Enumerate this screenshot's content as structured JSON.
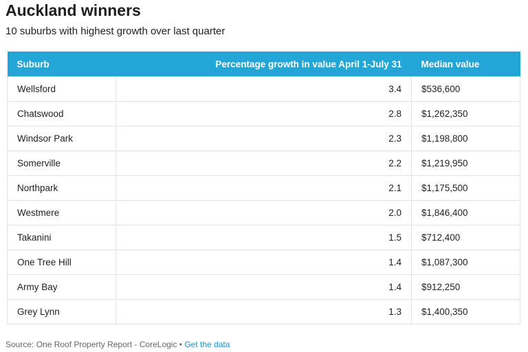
{
  "title": "Auckland winners",
  "subtitle": "10 suburbs with highest growth over last quarter",
  "header_color": "#22a6d6",
  "link_color": "#1b8fcf",
  "chart_data": {
    "type": "table",
    "title": "Auckland winners",
    "subtitle": "10 suburbs with highest growth over last quarter",
    "columns": [
      "Suburb",
      "Percentage growth in value April 1-July 31",
      "Median value"
    ],
    "rows": [
      [
        "Wellsford",
        "3.4",
        "$536,600"
      ],
      [
        "Chatswood",
        "2.8",
        "$1,262,350"
      ],
      [
        "Windsor Park",
        "2.3",
        "$1,198,800"
      ],
      [
        "Somerville",
        "2.2",
        "$1,219,950"
      ],
      [
        "Northpark",
        "2.1",
        "$1,175,500"
      ],
      [
        "Westmere",
        "2.0",
        "$1,846,400"
      ],
      [
        "Takanini",
        "1.5",
        "$712,400"
      ],
      [
        "One Tree Hill",
        "1.4",
        "$1,087,300"
      ],
      [
        "Army Bay",
        "1.4",
        "$912,250"
      ],
      [
        "Grey Lynn",
        "1.3",
        "$1,400,350"
      ]
    ]
  },
  "footer": {
    "source": "Source: One Roof Property Report - CoreLogic",
    "separator": " • ",
    "link_label": "Get the data"
  }
}
